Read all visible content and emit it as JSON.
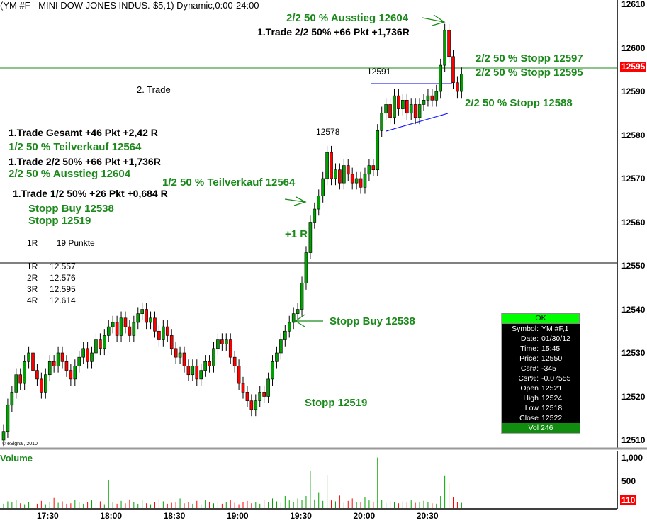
{
  "header": {
    "title": "(YM #F - MINI DOW JONES INDUS.-$5,1) Dynamic,0:00-24:00"
  },
  "annotations": {
    "top_exit": "2/2 50 % Ausstieg 12604",
    "top_trade": "1.Trade 2/2 50% +66 Pkt +1,736R",
    "second_trade": "2. Trade",
    "left_total": "1.Trade Gesamt +46 Pkt +2,42 R",
    "left_partial": "1/2 50 % Teilverkauf 12564",
    "left_trade22": "1.Trade 2/2 50% +66 Pkt +1,736R",
    "left_exit": "2/2 50 % Ausstieg 12604",
    "left_trade12": "1.Trade 1/2 50% +26 Pkt +0,684 R",
    "left_stopp_buy": "Stopp Buy 12538",
    "left_stopp": "Stopp 12519",
    "r_def_label": "1R =",
    "r_def_value": "19 Punkte",
    "r_table": [
      {
        "r": "1R",
        "v": "12.557"
      },
      {
        "r": "2R",
        "v": "12.576"
      },
      {
        "r": "3R",
        "v": "12.595"
      },
      {
        "r": "4R",
        "v": "12.614"
      }
    ],
    "mid_partial": "1/2 50 % Teilverkauf 12564",
    "plus_one_r": "+1 R",
    "stopp_buy": "Stopp Buy 12538",
    "stopp": "Stopp 12519",
    "high_label": "12578",
    "range_label": "12591",
    "stopp_12597": "2/2 50 % Stopp 12597",
    "stopp_12595": "2/2 50 % Stopp 12595",
    "stopp_12588": "2/2 50 % Stopp 12588",
    "copyright": "© eSignal, 2010"
  },
  "data_window": {
    "ok": "OK",
    "rows": [
      {
        "k": "Symbol:",
        "v": "YM #F,1"
      },
      {
        "k": "Date:",
        "v": "01/30/12"
      },
      {
        "k": "Time:",
        "v": "15:45"
      },
      {
        "k": "Price:",
        "v": "12550"
      },
      {
        "k": "Csr#:",
        "v": "-345"
      },
      {
        "k": "Csr%:",
        "v": "-0.07555"
      },
      {
        "k": "Open",
        "v": "12521"
      },
      {
        "k": "High",
        "v": "12524"
      },
      {
        "k": "Low",
        "v": "12518"
      },
      {
        "k": "Close",
        "v": "12522"
      }
    ],
    "vol": "Vol 246"
  },
  "colors": {
    "up": "#00a000",
    "down": "#ff0000",
    "trend": "#0000ff",
    "green_line": "#1b8a1b",
    "annotation_green": "#1b8a1b"
  },
  "chart_data": {
    "type": "candlestick",
    "title": "(YM #F - MINI DOW JONES INDUS.-$5,1) Dynamic,0:00-24:00",
    "price_axis": {
      "ticks": [
        "12610",
        "12600",
        "12590",
        "12580",
        "12570",
        "12560",
        "12550",
        "12540",
        "12530",
        "12520",
        "12510"
      ],
      "range": [
        12508,
        12611
      ],
      "current": "12595"
    },
    "time_axis": {
      "ticks": [
        "17:30",
        "18:00",
        "18:30",
        "19:00",
        "19:30",
        "20:00",
        "20:30"
      ],
      "start": "17:08",
      "bar_minutes": 2
    },
    "horizontal_lines": [
      {
        "price": 12595,
        "color": "green"
      },
      {
        "price": 12550,
        "color": "black"
      }
    ],
    "close": [
      12512,
      12518,
      12521,
      12525,
      12523,
      12528,
      12530,
      12526,
      12524,
      12521,
      12525,
      12528,
      12527,
      12530,
      12528,
      12526,
      12524,
      12527,
      12529,
      12531,
      12528,
      12530,
      12533,
      12531,
      12534,
      12536,
      12537,
      12534,
      12538,
      12536,
      12534,
      12537,
      12539,
      12540,
      12537,
      12538,
      12535,
      12533,
      12536,
      12534,
      12531,
      12529,
      12530,
      12527,
      12525,
      12527,
      12524,
      12526,
      12528,
      12527,
      12531,
      12533,
      12532,
      12533,
      12529,
      12527,
      12523,
      12521,
      12519,
      12517,
      12519,
      12521,
      12520,
      12524,
      12528,
      12530,
      12533,
      12535,
      12537,
      12539,
      12540,
      12546,
      12553,
      12560,
      12563,
      12566,
      12570,
      12576,
      12570,
      12572,
      12569,
      12573,
      12571,
      12569,
      12570,
      12568,
      12571,
      12573,
      12572,
      12581,
      12585,
      12587,
      12584,
      12589,
      12586,
      12588,
      12585,
      12587,
      12584,
      12587,
      12588,
      12589,
      12588,
      12590,
      12596,
      12604,
      12598,
      12592,
      12590,
      12594
    ],
    "volume_panel": {
      "label": "Volume",
      "ticks": [
        "1,000",
        "500"
      ],
      "current": "110",
      "range": [
        0,
        1100
      ]
    },
    "volume": [
      90,
      140,
      120,
      170,
      100,
      80,
      130,
      160,
      90,
      150,
      80,
      120,
      210,
      110,
      140,
      90,
      100,
      170,
      130,
      90,
      120,
      160,
      100,
      140,
      80,
      580,
      120,
      90,
      150,
      100,
      180,
      130,
      90,
      170,
      100,
      80,
      120,
      190,
      140,
      90,
      110,
      130,
      200,
      100,
      120,
      90,
      150,
      80,
      160,
      120,
      100,
      140,
      90,
      130,
      170,
      110,
      80,
      120,
      150,
      100,
      130,
      90,
      160,
      120,
      200,
      140,
      110,
      250,
      160,
      120,
      200,
      170,
      250,
      780,
      180,
      330,
      150,
      690,
      160,
      140,
      260,
      110,
      150,
      200,
      120,
      130,
      220,
      160,
      120,
      1050,
      170,
      110,
      150,
      130,
      100,
      140,
      120,
      160,
      110,
      130,
      150,
      120,
      100,
      90,
      250,
      680,
      530,
      220,
      130,
      110
    ]
  }
}
